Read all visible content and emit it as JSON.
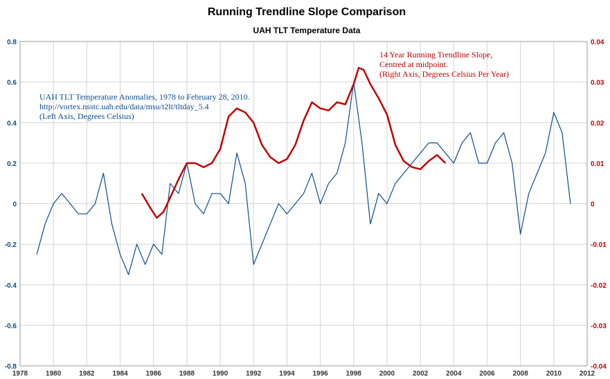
{
  "chart_data": {
    "type": "line",
    "title": "Running Trendline Slope Comparison",
    "subtitle": "UAH TLT Temperature Data",
    "x_ticks": [
      "1978",
      "1980",
      "1982",
      "1984",
      "1986",
      "1988",
      "1990",
      "1992",
      "1994",
      "1996",
      "1998",
      "2000",
      "2002",
      "2004",
      "2006",
      "2008",
      "2010",
      "2012"
    ],
    "xlim": [
      1978,
      2012
    ],
    "left_axis": {
      "ylim": [
        -0.8,
        0.8
      ],
      "ticks": [
        "0.8",
        "0.6",
        "0.4",
        "0.2",
        "0",
        "-0.2",
        "-0.4",
        "-0.6",
        "-0.8"
      ],
      "color": "#0b4c8c"
    },
    "right_axis": {
      "ylim": [
        -0.04,
        0.04
      ],
      "ticks": [
        "0.04",
        "0.03",
        "0.02",
        "0.01",
        "0",
        "-0.01",
        "-0.02",
        "-0.03",
        "-0.04"
      ],
      "color": "#c00000"
    },
    "grid": true,
    "annotations": {
      "left": [
        "UAH TLT Temperature Anomalies, 1978 to February 28, 2010.",
        "http://vortex.nsstc.uah.edu/data/msu/t2lt/tltday_5.4",
        "(Left Axis, Degrees Celsius)"
      ],
      "right": [
        "14 Year Running Trendline Slope,",
        "Centred at midpoint.",
        "(Right Axis, Degrees Celsius Per Year)"
      ]
    },
    "series": [
      {
        "axis": "left",
        "color": "#0b4c8c",
        "x": [
          1979.0,
          1979.5,
          1980.0,
          1980.5,
          1981.0,
          1981.5,
          1982.0,
          1982.5,
          1983.0,
          1983.5,
          1984.0,
          1984.5,
          1985.0,
          1985.5,
          1986.0,
          1986.5,
          1987.0,
          1987.5,
          1988.0,
          1988.5,
          1989.0,
          1989.5,
          1990.0,
          1990.5,
          1991.0,
          1991.5,
          1992.0,
          1992.5,
          1993.0,
          1993.5,
          1994.0,
          1994.5,
          1995.0,
          1995.5,
          1996.0,
          1996.5,
          1997.0,
          1997.5,
          1998.0,
          1998.5,
          1999.0,
          1999.5,
          2000.0,
          2000.5,
          2001.0,
          2001.5,
          2002.0,
          2002.5,
          2003.0,
          2003.5,
          2004.0,
          2004.5,
          2005.0,
          2005.5,
          2006.0,
          2006.5,
          2007.0,
          2007.5,
          2008.0,
          2008.5,
          2009.0,
          2009.5,
          2010.0,
          2010.5,
          2011.0
        ],
        "y": [
          -0.25,
          -0.1,
          0.0,
          0.05,
          0.0,
          -0.05,
          -0.05,
          0.0,
          0.15,
          -0.1,
          -0.25,
          -0.35,
          -0.2,
          -0.3,
          -0.2,
          -0.25,
          0.1,
          0.05,
          0.2,
          0.0,
          -0.05,
          0.05,
          0.05,
          0.0,
          0.25,
          0.1,
          -0.3,
          -0.2,
          -0.1,
          0.0,
          -0.05,
          0.0,
          0.05,
          0.15,
          0.0,
          0.1,
          0.15,
          0.3,
          0.6,
          0.3,
          -0.1,
          0.05,
          0.0,
          0.1,
          0.15,
          0.2,
          0.25,
          0.3,
          0.3,
          0.25,
          0.2,
          0.3,
          0.35,
          0.2,
          0.2,
          0.3,
          0.35,
          0.2,
          -0.15,
          0.05,
          0.15,
          0.25,
          0.45,
          0.35,
          0.0
        ]
      },
      {
        "axis": "right",
        "color": "#c00000",
        "x": [
          1985.3,
          1985.8,
          1986.2,
          1986.6,
          1987.0,
          1987.5,
          1988.0,
          1988.5,
          1989.0,
          1989.5,
          1990.0,
          1990.5,
          1991.0,
          1991.5,
          1992.0,
          1992.5,
          1993.0,
          1993.5,
          1994.0,
          1994.5,
          1995.0,
          1995.5,
          1996.0,
          1996.5,
          1997.0,
          1997.5,
          1998.0,
          1998.3,
          1998.6,
          1999.0,
          1999.5,
          2000.0,
          2000.5,
          2001.0,
          2001.5,
          2002.0,
          2002.5,
          2003.0,
          2003.5
        ],
        "y": [
          0.0025,
          -0.001,
          -0.0035,
          -0.002,
          0.0015,
          0.006,
          0.01,
          0.01,
          0.009,
          0.01,
          0.0135,
          0.0215,
          0.0235,
          0.0225,
          0.02,
          0.0145,
          0.0115,
          0.01,
          0.011,
          0.0145,
          0.0205,
          0.025,
          0.0235,
          0.023,
          0.025,
          0.0245,
          0.0295,
          0.0335,
          0.033,
          0.0295,
          0.026,
          0.022,
          0.0145,
          0.0105,
          0.009,
          0.0085,
          0.0105,
          0.012,
          0.01
        ]
      }
    ]
  }
}
